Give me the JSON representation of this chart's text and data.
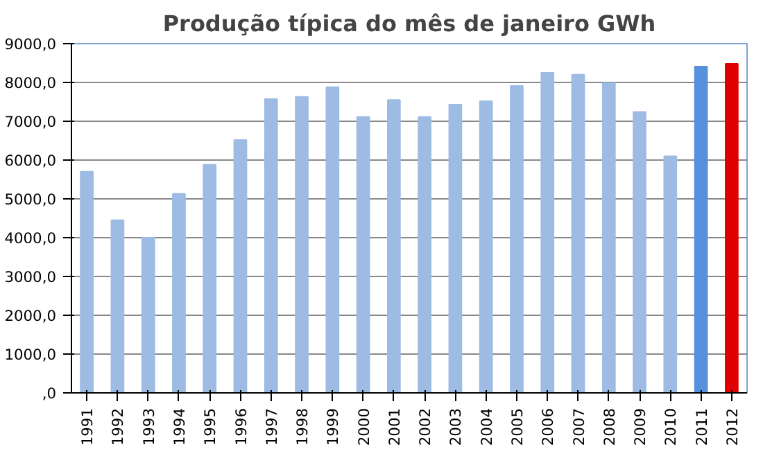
{
  "chart_data": {
    "type": "bar",
    "title": "Produção típica do mês de janeiro GWh",
    "categories": [
      "1991",
      "1992",
      "1993",
      "1994",
      "1995",
      "1996",
      "1997",
      "1998",
      "1999",
      "2000",
      "2001",
      "2002",
      "2003",
      "2004",
      "2005",
      "2006",
      "2007",
      "2008",
      "2009",
      "2010",
      "2011",
      "2012"
    ],
    "values": [
      5700,
      4450,
      4000,
      5130,
      5880,
      6520,
      7570,
      7630,
      7880,
      7110,
      7550,
      7110,
      7430,
      7520,
      7910,
      8250,
      8200,
      7980,
      7240,
      6100,
      8410,
      8480
    ],
    "colors": [
      "#9dbbe3",
      "#9dbbe3",
      "#9dbbe3",
      "#9dbbe3",
      "#9dbbe3",
      "#9dbbe3",
      "#9dbbe3",
      "#9dbbe3",
      "#9dbbe3",
      "#9dbbe3",
      "#9dbbe3",
      "#9dbbe3",
      "#9dbbe3",
      "#9dbbe3",
      "#9dbbe3",
      "#9dbbe3",
      "#9dbbe3",
      "#9dbbe3",
      "#9dbbe3",
      "#9dbbe3",
      "#5591dc",
      "#e00000"
    ],
    "ylim": [
      0,
      9000
    ],
    "yticks": [
      {
        "value": 0,
        "label": ",0"
      },
      {
        "value": 1000,
        "label": "1000,0"
      },
      {
        "value": 2000,
        "label": "2000,0"
      },
      {
        "value": 3000,
        "label": "3000,0"
      },
      {
        "value": 4000,
        "label": "4000,0"
      },
      {
        "value": 5000,
        "label": "5000,0"
      },
      {
        "value": 6000,
        "label": "6000,0"
      },
      {
        "value": 7000,
        "label": "7000,0"
      },
      {
        "value": 8000,
        "label": "8000,0"
      },
      {
        "value": 9000,
        "label": "9000,0"
      }
    ],
    "grid": "y"
  }
}
